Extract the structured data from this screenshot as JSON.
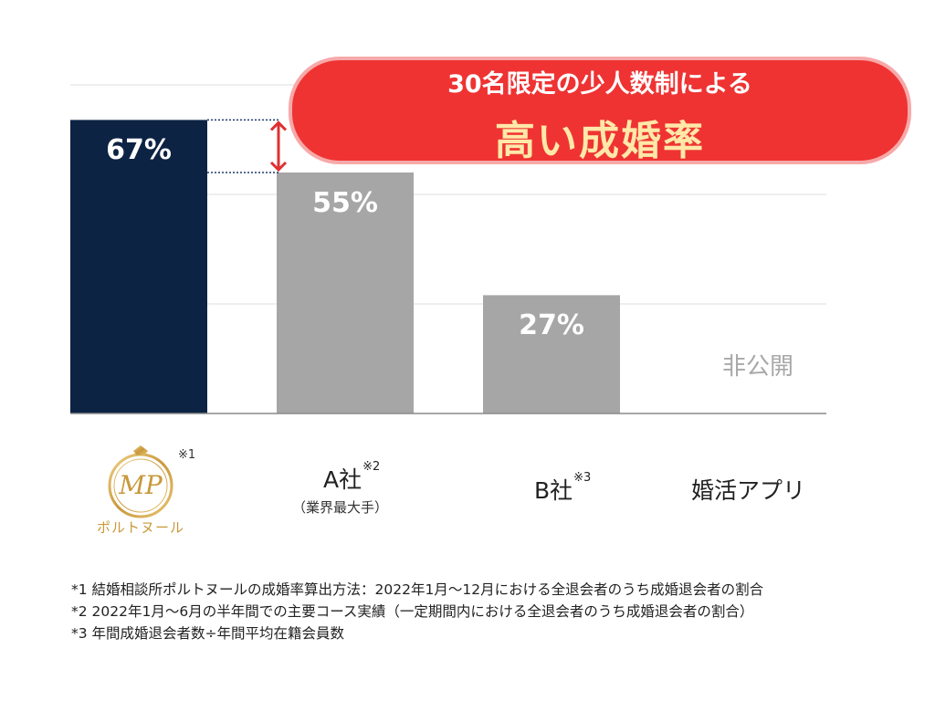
{
  "chart_data": {
    "type": "bar",
    "categories": [
      "ポルトヌール",
      "A社",
      "B社",
      "婚活アプリ"
    ],
    "values": [
      67,
      55,
      27,
      null
    ],
    "value_labels": [
      "67%",
      "55%",
      "27%",
      "非公開"
    ],
    "bar_colors": [
      "#0d2344",
      "#a6a6a6",
      "#a6a6a6",
      "#a6a6a6"
    ],
    "ylim": [
      0,
      80
    ],
    "grid": true,
    "title": "",
    "xlabel": "",
    "ylabel": ""
  },
  "categories_display": {
    "logo_text": "ポルトヌール",
    "logo_note": "※1",
    "a_name": "A社",
    "a_note": "※2",
    "a_sub": "（業界最大手）",
    "b_name": "B社",
    "b_note": "※3",
    "app_name": "婚活アプリ"
  },
  "callout": {
    "line1": "30名限定の少人数制による",
    "line2": "高い成婚率",
    "fill_color": "#ef3333",
    "highlight_color": "#ffe8a8",
    "arrow_color": "#e03030"
  },
  "footnotes": [
    "*1 結婚相談所ポルトヌールの成婚率算出方法：2022年1月～12月における全退会者のうち成婚退会者の割合",
    "*2 2022年1月～6月の半年間での主要コース実績（一定期間内における全退会者のうち成婚退会者の割合）",
    "*3 年間成婚退会者数÷年間平均在籍会員数"
  ]
}
